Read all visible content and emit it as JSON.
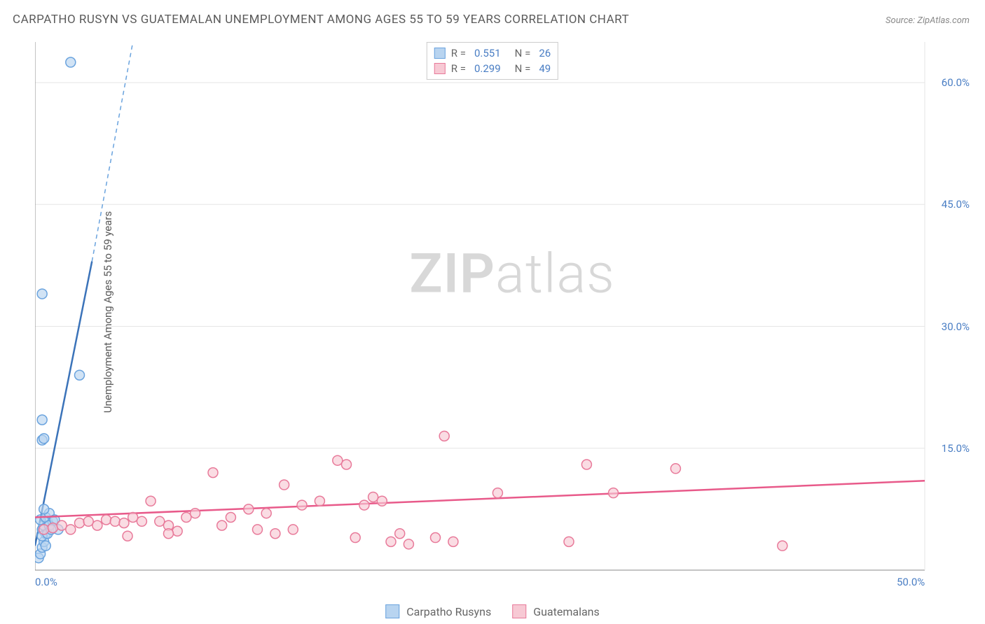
{
  "title": "CARPATHO RUSYN VS GUATEMALAN UNEMPLOYMENT AMONG AGES 55 TO 59 YEARS CORRELATION CHART",
  "source": "Source: ZipAtlas.com",
  "y_axis_label": "Unemployment Among Ages 55 to 59 years",
  "watermark_bold": "ZIP",
  "watermark_light": "atlas",
  "chart": {
    "type": "scatter",
    "background_color": "#ffffff",
    "grid_color": "#e5e5e5",
    "axis_color": "#888888",
    "xlim": [
      0,
      50
    ],
    "ylim": [
      0,
      65
    ],
    "x_ticks": [
      0,
      50
    ],
    "x_tick_labels": [
      "0.0%",
      "50.0%"
    ],
    "y_ticks": [
      15,
      30,
      45,
      60
    ],
    "y_tick_labels": [
      "15.0%",
      "30.0%",
      "45.0%",
      "60.0%"
    ],
    "tick_color": "#4a7ec4",
    "tick_fontsize": 15,
    "series": [
      {
        "name": "Carpatho Rusyns",
        "marker_color_fill": "#b8d4f0",
        "marker_color_stroke": "#6aa3de",
        "line_color": "#3b73b9",
        "line_dash_color": "#6aa3de",
        "marker_radius": 7,
        "R": "0.551",
        "N": "26",
        "trend_line": {
          "x1": 0,
          "y1": 3,
          "x2": 3.2,
          "y2": 38
        },
        "trend_dash": {
          "x1": 3.2,
          "y1": 38,
          "x2": 5.5,
          "y2": 65
        },
        "points": [
          [
            0.2,
            1.5
          ],
          [
            0.3,
            2.0
          ],
          [
            0.4,
            2.8
          ],
          [
            0.5,
            3.5
          ],
          [
            0.6,
            4.5
          ],
          [
            0.4,
            5.0
          ],
          [
            0.5,
            5.5
          ],
          [
            0.7,
            6.0
          ],
          [
            0.3,
            6.2
          ],
          [
            0.6,
            6.5
          ],
          [
            0.8,
            7.0
          ],
          [
            1.0,
            6.0
          ],
          [
            0.5,
            7.5
          ],
          [
            0.4,
            4.2
          ],
          [
            0.8,
            5.5
          ],
          [
            1.1,
            6.2
          ],
          [
            1.3,
            5.0
          ],
          [
            0.4,
            16.0
          ],
          [
            0.5,
            16.2
          ],
          [
            0.4,
            18.5
          ],
          [
            2.5,
            24.0
          ],
          [
            0.4,
            34.0
          ],
          [
            2.0,
            62.5
          ],
          [
            0.6,
            3.0
          ],
          [
            0.7,
            4.5
          ],
          [
            0.9,
            5.0
          ]
        ]
      },
      {
        "name": "Guatemalans",
        "marker_color_fill": "#f7c9d4",
        "marker_color_stroke": "#e87a9a",
        "line_color": "#e85a8a",
        "marker_radius": 7,
        "R": "0.299",
        "N": "49",
        "trend_line": {
          "x1": 0,
          "y1": 6.5,
          "x2": 50,
          "y2": 11.0
        },
        "points": [
          [
            0.5,
            5.0
          ],
          [
            1.0,
            5.2
          ],
          [
            1.5,
            5.5
          ],
          [
            2.0,
            5.0
          ],
          [
            2.5,
            5.8
          ],
          [
            3.0,
            6.0
          ],
          [
            3.5,
            5.5
          ],
          [
            4.0,
            6.2
          ],
          [
            4.5,
            6.0
          ],
          [
            5.0,
            5.8
          ],
          [
            5.5,
            6.5
          ],
          [
            5.2,
            4.2
          ],
          [
            6.0,
            6.0
          ],
          [
            6.5,
            8.5
          ],
          [
            7.0,
            6.0
          ],
          [
            7.5,
            5.5
          ],
          [
            8.0,
            4.8
          ],
          [
            9.0,
            7.0
          ],
          [
            10.0,
            12.0
          ],
          [
            10.5,
            5.5
          ],
          [
            11.0,
            6.5
          ],
          [
            12.0,
            7.5
          ],
          [
            12.5,
            5.0
          ],
          [
            13.0,
            7.0
          ],
          [
            13.5,
            4.5
          ],
          [
            14.0,
            10.5
          ],
          [
            14.5,
            5.0
          ],
          [
            15.0,
            8.0
          ],
          [
            16.0,
            8.5
          ],
          [
            17.0,
            13.5
          ],
          [
            17.5,
            13.0
          ],
          [
            18.0,
            4.0
          ],
          [
            18.5,
            8.0
          ],
          [
            19.0,
            9.0
          ],
          [
            19.5,
            8.5
          ],
          [
            20.0,
            3.5
          ],
          [
            20.5,
            4.5
          ],
          [
            21.0,
            3.2
          ],
          [
            22.5,
            4.0
          ],
          [
            23.0,
            16.5
          ],
          [
            23.5,
            3.5
          ],
          [
            26.0,
            9.5
          ],
          [
            30.0,
            3.5
          ],
          [
            31.0,
            13.0
          ],
          [
            32.5,
            9.5
          ],
          [
            36.0,
            12.5
          ],
          [
            42.0,
            3.0
          ],
          [
            7.5,
            4.5
          ],
          [
            8.5,
            6.5
          ]
        ]
      }
    ]
  },
  "legend_top": [
    {
      "swatch_fill": "#b8d4f0",
      "swatch_border": "#6aa3de",
      "r_label": "R  =",
      "r_val": "0.551",
      "n_label": "N  =",
      "n_val": "26"
    },
    {
      "swatch_fill": "#f7c9d4",
      "swatch_border": "#e87a9a",
      "r_label": "R  =",
      "r_val": "0.299",
      "n_label": "N  =",
      "n_val": "49"
    }
  ],
  "legend_bottom": [
    {
      "swatch_fill": "#b8d4f0",
      "swatch_border": "#6aa3de",
      "label": "Carpatho Rusyns"
    },
    {
      "swatch_fill": "#f7c9d4",
      "swatch_border": "#e87a9a",
      "label": "Guatemalans"
    }
  ]
}
